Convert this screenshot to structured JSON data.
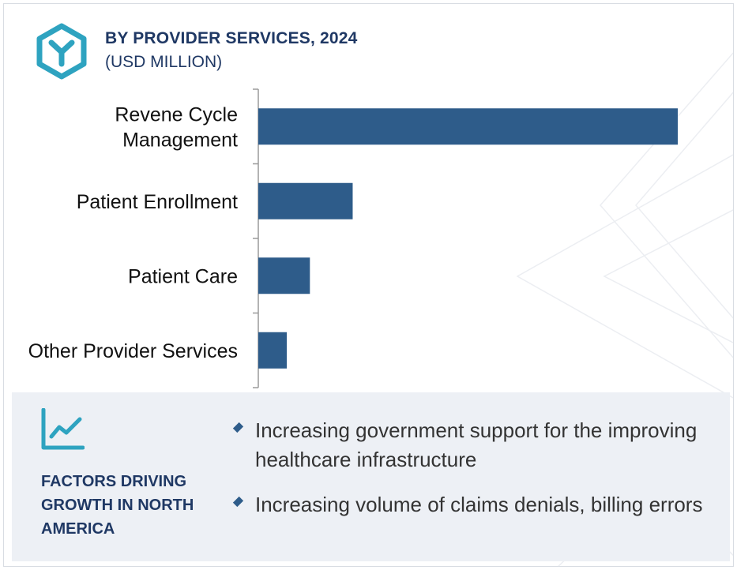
{
  "header": {
    "title": "BY PROVIDER SERVICES, 2024",
    "subtitle": "(USD MILLION)",
    "logo_icon": "y-hexagon-logo-icon"
  },
  "colors": {
    "bar": "#2e5c8a",
    "title": "#1f3864",
    "accent": "#2ea3c0",
    "footer_bg": "#edf0f5"
  },
  "chart_data": {
    "type": "bar",
    "orientation": "horizontal",
    "categories": [
      [
        "Revene Cycle",
        "Management"
      ],
      [
        "Patient Enrollment"
      ],
      [
        "Patient Care"
      ],
      [
        "Other Provider Services"
      ]
    ],
    "values": [
      100,
      22.5,
      12.3,
      6.8
    ],
    "xlim": [
      0,
      100
    ],
    "grid": false,
    "title": "BY PROVIDER SERVICES, 2024",
    "xlabel": "",
    "ylabel": ""
  },
  "factors": {
    "icon": "trend-line-chart-icon",
    "title": "FACTORS DRIVING GROWTH IN NORTH AMERICA",
    "bullets": [
      "Increasing government support for the improving healthcare infrastructure",
      "Increasing volume of claims denials, billing errors"
    ]
  }
}
